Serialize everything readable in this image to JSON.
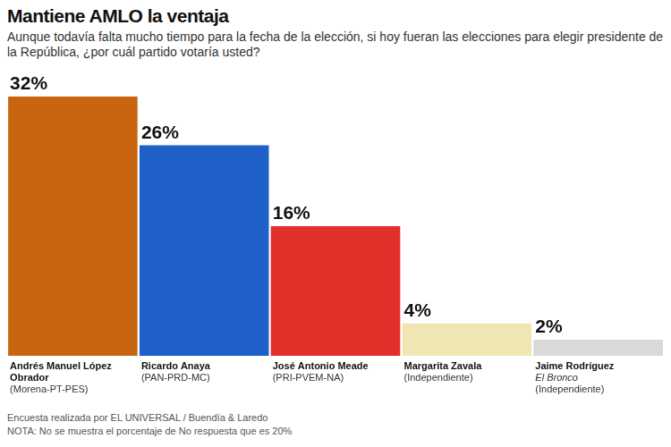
{
  "chart_data": {
    "type": "bar",
    "title": "Mantiene AMLO la ventaja",
    "subtitle": "Aunque todavía falta mucho tiempo para la fecha de la elección, si hoy fueran las elecciones para elegir presidente de la República, ¿por cuál partido votaría usted?",
    "categories": [
      "Andrés Manuel López Obrador\n(Morena-PT-PES)",
      "Ricardo Anaya\n(PAN-PRD-MC)",
      "José Antonio Meade\n(PRI-PVEM-NA)",
      "Margarita Zavala\n(Independiente)",
      "Jaime Rodríguez\nEl Bronco\n(Independiente)"
    ],
    "values": [
      32,
      26,
      16,
      4,
      2
    ],
    "value_labels": [
      "32%",
      "26%",
      "16%",
      "4%",
      "2%"
    ],
    "colors": [
      "#c9650f",
      "#1f5fc8",
      "#e2302a",
      "#efe6b4",
      "#d9d9d9"
    ],
    "ylim": [
      0,
      32
    ],
    "grid": false,
    "tick_labels": false,
    "data_labels": true,
    "annotations": [
      "Encuesta realizada por EL UNIVERSAL / Buendía & Laredo",
      "NOTA: No se muestra el porcentaje de No respuesta que es 20%"
    ]
  }
}
